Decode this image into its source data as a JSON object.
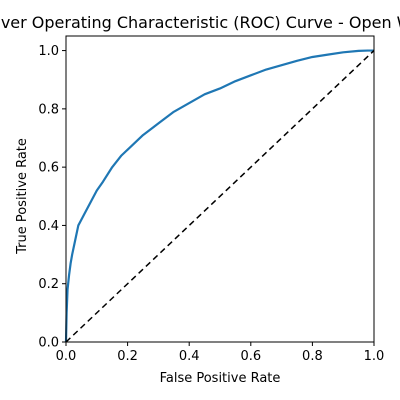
{
  "chart_data": {
    "type": "line",
    "title": "Receiver Operating Characteristic (ROC) Curve - Open World",
    "xlabel": "False Positive Rate",
    "ylabel": "True Positive Rate",
    "xlim": [
      0.0,
      1.0
    ],
    "ylim": [
      0.0,
      1.05
    ],
    "xticks": [
      "0.0",
      "0.2",
      "0.4",
      "0.6",
      "0.8",
      "1.0"
    ],
    "yticks": [
      "0.0",
      "0.2",
      "0.4",
      "0.6",
      "0.8",
      "1.0"
    ],
    "grid": false,
    "series": [
      {
        "color": "#1f77b4",
        "style": "solid",
        "x": [
          0.0,
          0.002,
          0.005,
          0.01,
          0.015,
          0.02,
          0.03,
          0.04,
          0.05,
          0.06,
          0.08,
          0.1,
          0.12,
          0.15,
          0.18,
          0.2,
          0.25,
          0.3,
          0.35,
          0.4,
          0.45,
          0.5,
          0.55,
          0.6,
          0.65,
          0.7,
          0.75,
          0.8,
          0.85,
          0.9,
          0.95,
          0.98,
          1.0
        ],
        "y": [
          0.0,
          0.1,
          0.18,
          0.23,
          0.27,
          0.3,
          0.35,
          0.4,
          0.42,
          0.44,
          0.48,
          0.52,
          0.55,
          0.6,
          0.64,
          0.66,
          0.71,
          0.75,
          0.79,
          0.82,
          0.85,
          0.87,
          0.895,
          0.915,
          0.935,
          0.95,
          0.965,
          0.978,
          0.986,
          0.994,
          0.999,
          1.0,
          1.0
        ]
      },
      {
        "color": "#000000",
        "style": "dashed",
        "x": [
          0.0,
          1.0
        ],
        "y": [
          0.0,
          1.0
        ]
      }
    ]
  }
}
